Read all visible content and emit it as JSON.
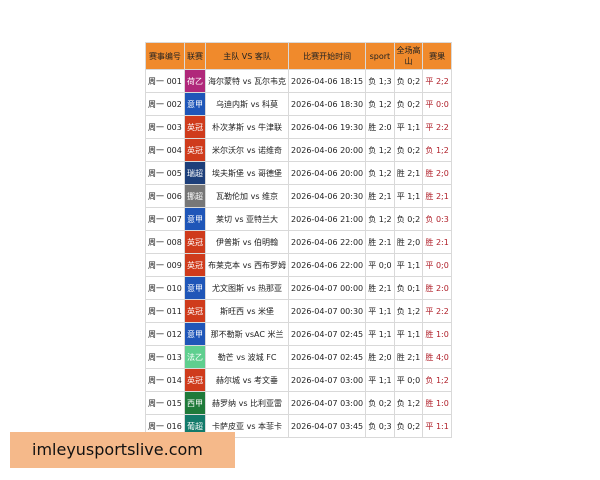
{
  "table": {
    "headers": [
      "赛事编号",
      "联赛",
      "主队 VS 客队",
      "比赛开始时间",
      "sport",
      "全场高山",
      "赛果"
    ],
    "rows": [
      {
        "id": "周一 001",
        "league": "荷乙",
        "color": "#b0287a",
        "match": "海尔蒙特 vs 瓦尔韦克",
        "time": "2026-04-06 18:15",
        "sport": "负 1;3",
        "full": "负 0;2",
        "result": "平 2;2"
      },
      {
        "id": "周一 002",
        "league": "意甲",
        "color": "#1f56b8",
        "match": "乌迪内斯 vs 科莫",
        "time": "2026-04-06 18:30",
        "sport": "负 1;2",
        "full": "负 0;2",
        "result": "平 0:0"
      },
      {
        "id": "周一 003",
        "league": "英冠",
        "color": "#cf3b1c",
        "match": "朴次茅斯 vs 牛津联",
        "time": "2026-04-06 19:30",
        "sport": "胜 2:0",
        "full": "平 1;1",
        "result": "平 2:2"
      },
      {
        "id": "周一 004",
        "league": "英冠",
        "color": "#cf3b1c",
        "match": "米尔沃尔 vs 诺维奇",
        "time": "2026-04-06 20:00",
        "sport": "负 1;2",
        "full": "负 0;2",
        "result": "负 1;2"
      },
      {
        "id": "周一 005",
        "league": "瑞超",
        "color": "#1d3f7a",
        "match": "埃夫斯堡 vs 哥德堡",
        "time": "2026-04-06 20:00",
        "sport": "负 1;2",
        "full": "胜 2;1",
        "result": "胜 2;0"
      },
      {
        "id": "周一 006",
        "league": "挪超",
        "color": "#777777",
        "match": "瓦勒伦加 vs 维京",
        "time": "2026-04-06 20:30",
        "sport": "胜 2;1",
        "full": "平 1;1",
        "result": "胜 2;1"
      },
      {
        "id": "周一 007",
        "league": "意甲",
        "color": "#1f56b8",
        "match": "莱切 vs 亚特兰大",
        "time": "2026-04-06 21:00",
        "sport": "负 1;2",
        "full": "负 0;2",
        "result": "负 0:3"
      },
      {
        "id": "周一 008",
        "league": "英冠",
        "color": "#cf3b1c",
        "match": "伊普斯 vs 伯明翰",
        "time": "2026-04-06 22:00",
        "sport": "胜 2:1",
        "full": "胜 2;0",
        "result": "胜 2:1"
      },
      {
        "id": "周一 009",
        "league": "英冠",
        "color": "#cf3b1c",
        "match": "布莱克本 vs 西布罗姆",
        "time": "2026-04-06 22:00",
        "sport": "平 0;0",
        "full": "平 1;1",
        "result": "平 0;0"
      },
      {
        "id": "周一 010",
        "league": "意甲",
        "color": "#1f56b8",
        "match": "尤文图斯 vs 热那亚",
        "time": "2026-04-07 00:00",
        "sport": "胜 2;1",
        "full": "负 0;1",
        "result": "胜 2:0"
      },
      {
        "id": "周一 011",
        "league": "英冠",
        "color": "#cf3b1c",
        "match": "斯旺西 vs 米堡",
        "time": "2026-04-07 00:30",
        "sport": "平 1;1",
        "full": "负 1;2",
        "result": "平 2:2"
      },
      {
        "id": "周一 012",
        "league": "意甲",
        "color": "#1f56b8",
        "match": "那不勒斯 vsAC 米兰",
        "time": "2026-04-07 02:45",
        "sport": "平 1;1",
        "full": "平 1;1",
        "result": "胜 1:0"
      },
      {
        "id": "周一 013",
        "league": "法乙",
        "color": "#5fcf8f",
        "match": "勒芒 vs 波城 FC",
        "time": "2026-04-07 02:45",
        "sport": "胜 2;0",
        "full": "胜 2;1",
        "result": "胜 4;0"
      },
      {
        "id": "周一 014",
        "league": "英冠",
        "color": "#cf3b1c",
        "match": "赫尔城 vs 考文垂",
        "time": "2026-04-07 03:00",
        "sport": "平 1;1",
        "full": "平 0;0",
        "result": "负 1;2"
      },
      {
        "id": "周一 015",
        "league": "西甲",
        "color": "#1f7a3a",
        "match": "赫罗纳 vs 比利亚雷",
        "time": "2026-04-07 03:00",
        "sport": "负 0;2",
        "full": "负 1;2",
        "result": "胜 1:0"
      },
      {
        "id": "周一 016",
        "league": "葡超",
        "color": "#127a6a",
        "match": "卡萨皮亚 vs 本菲卡",
        "time": "2026-04-07 03:45",
        "sport": "负 0;3",
        "full": "负 0;2",
        "result": "平 1:1"
      }
    ]
  },
  "banner": "imleyusportslive.com"
}
